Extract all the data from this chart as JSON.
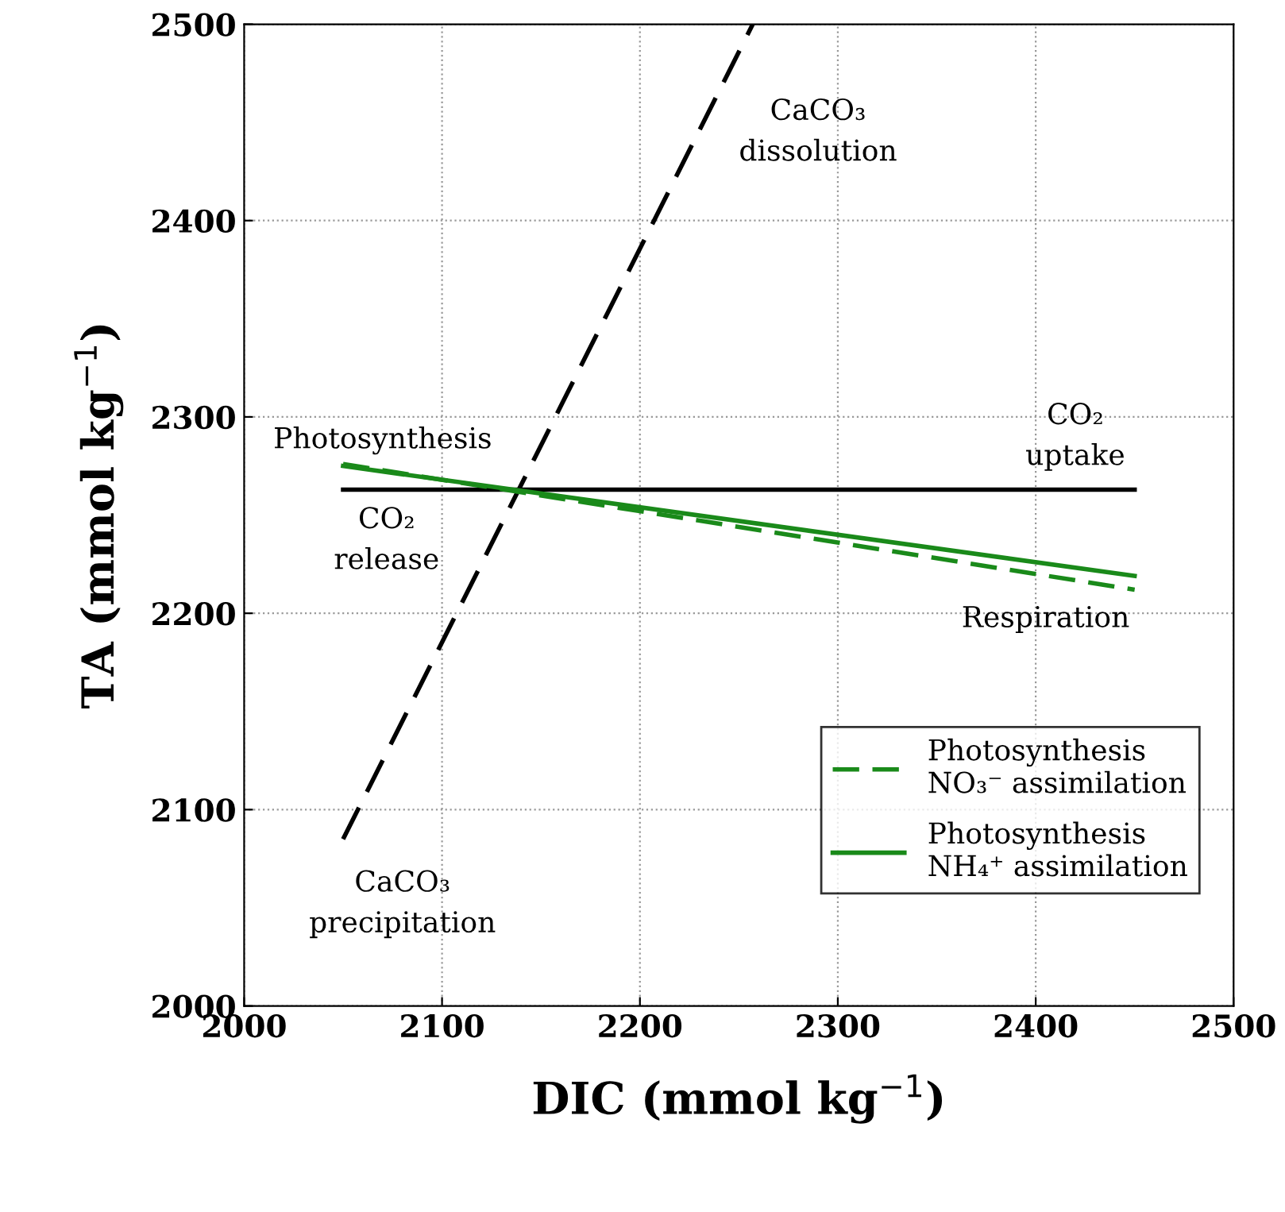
{
  "chart_data": {
    "type": "line",
    "xlabel": "DIC (mmol kg$^{−1}$)",
    "ylabel": "TA (mmol kg$^{−1}$)",
    "xlim": [
      2000,
      2500
    ],
    "ylim": [
      2000,
      2500
    ],
    "xticks": [
      2000,
      2100,
      2200,
      2300,
      2400,
      2500
    ],
    "yticks": [
      2000,
      2100,
      2200,
      2300,
      2400,
      2500
    ],
    "grid": true,
    "legend": "bottom right",
    "series": [
      {
        "color": "#000000",
        "line_style": "dashed",
        "x": [
          2050,
          2257
        ],
        "values": [
          2085,
          2500
        ]
      },
      {
        "color": "#000000",
        "line_style": "solid",
        "x": [
          2050,
          2450
        ],
        "values": [
          2263,
          2263
        ]
      },
      {
        "name": "Photosynthesis\nNO₃⁻ assimilation",
        "color": "#1a8a1a",
        "line_style": "dashed",
        "x": [
          2050,
          2450
        ],
        "values": [
          2276,
          2212
        ]
      },
      {
        "name": "Photosynthesis\nNH₄⁺ assimilation",
        "color": "#1a8a1a",
        "line_style": "solid",
        "x": [
          2050,
          2450
        ],
        "values": [
          2275,
          2219
        ]
      }
    ],
    "annotations": [
      "CaCO₃\ndissolution",
      "CaCO₃\nprecipitation",
      "Photosynthesis",
      "CO₂\nrelease",
      "CO₂\nuptake",
      "Respiration"
    ]
  }
}
